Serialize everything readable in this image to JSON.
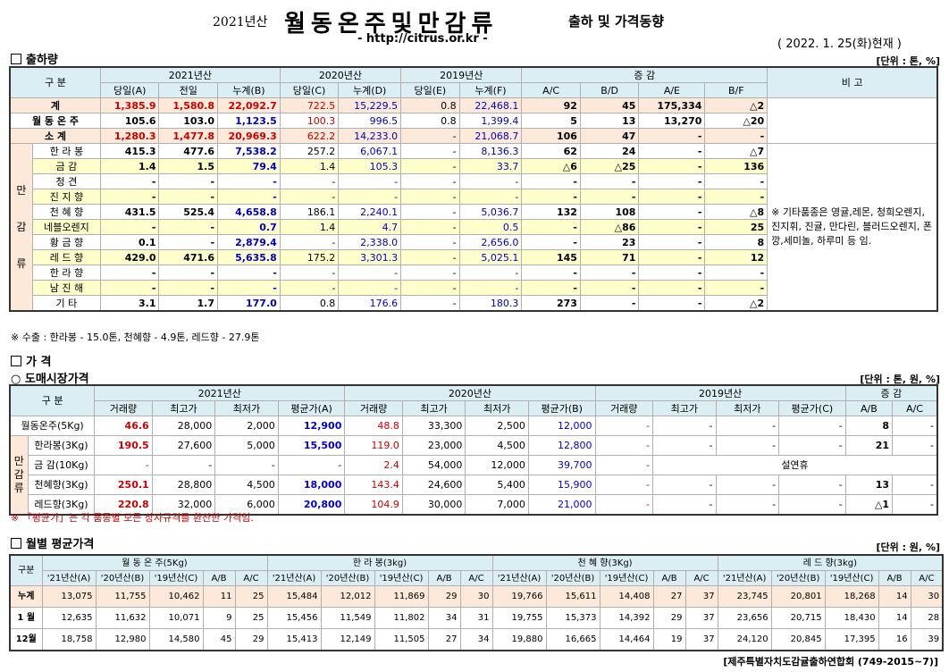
{
  "header": {
    "year": "2021년산",
    "title": "월동온주및만감류",
    "subtitle": "출하 및 가격동향",
    "url": "- http://citrus.or.kr -",
    "date": "( 2022. 1. 25(화)현재 )"
  },
  "s1": {
    "heading": "출하량",
    "unit": "[단위 : 톤, %]",
    "h_gubun": "구 분",
    "h_y21": "2021년산",
    "h_y20": "2020년산",
    "h_y19": "2019년산",
    "h_change": "증 감",
    "h_note": "비 고",
    "cols": [
      "당일(A)",
      "전일",
      "누계(B)",
      "당일(C)",
      "누계(D)",
      "당일(E)",
      "누계(F)",
      "A/C",
      "B/D",
      "A/E",
      "B/F"
    ],
    "side_label": [
      "만",
      "감",
      "류"
    ],
    "rows": [
      {
        "name": "계",
        "v": [
          "1,385.9",
          "1,580.8",
          "22,092.7",
          "722.5",
          "15,229.5",
          "0.8",
          "22,468.1",
          "92",
          "45",
          "175,334",
          "△2"
        ]
      },
      {
        "name": "월 동 온 주",
        "v": [
          "105.6",
          "103.0",
          "1,123.5",
          "100.3",
          "996.5",
          "0.8",
          "1,399.4",
          "5",
          "13",
          "13,270",
          "△20"
        ]
      },
      {
        "name": "소 계",
        "v": [
          "1,280.3",
          "1,477.8",
          "20,969.3",
          "622.2",
          "14,233.0",
          "-",
          "21,068.7",
          "106",
          "47",
          "-",
          "-"
        ]
      },
      {
        "name": "한 라 봉",
        "v": [
          "415.3",
          "477.6",
          "7,538.2",
          "257.2",
          "6,067.1",
          "-",
          "8,136.3",
          "62",
          "24",
          "-",
          "△7"
        ]
      },
      {
        "name": "금 감",
        "v": [
          "1.4",
          "1.5",
          "79.4",
          "1.4",
          "105.3",
          "-",
          "33.7",
          "△6",
          "△25",
          "-",
          "136"
        ]
      },
      {
        "name": "청 견",
        "v": [
          "-",
          "-",
          "-",
          "-",
          "-",
          "-",
          "-",
          "-",
          "-",
          "-",
          "-"
        ]
      },
      {
        "name": "진 지 향",
        "v": [
          "-",
          "-",
          "-",
          "-",
          "-",
          "-",
          "-",
          "-",
          "-",
          "-",
          "-"
        ]
      },
      {
        "name": "천 혜 향",
        "v": [
          "431.5",
          "525.4",
          "4,658.8",
          "186.1",
          "2,240.1",
          "-",
          "5,036.7",
          "132",
          "108",
          "-",
          "△8"
        ]
      },
      {
        "name": "네블오렌지",
        "v": [
          "-",
          "-",
          "0.7",
          "1.4",
          "4.7",
          "-",
          "0.5",
          "-",
          "△86",
          "-",
          "25"
        ]
      },
      {
        "name": "황 금 향",
        "v": [
          "0.1",
          "-",
          "2,879.4",
          "-",
          "2,338.0",
          "-",
          "2,656.0",
          "-",
          "23",
          "-",
          "8"
        ]
      },
      {
        "name": "레 드 향",
        "v": [
          "429.0",
          "471.6",
          "5,635.8",
          "175.2",
          "3,301.3",
          "-",
          "5,025.1",
          "145",
          "71",
          "-",
          "12"
        ]
      },
      {
        "name": "한 라 향",
        "v": [
          "-",
          "-",
          "-",
          "-",
          "-",
          "-",
          "-",
          "-",
          "-",
          "-",
          "-"
        ]
      },
      {
        "name": "남 진 해",
        "v": [
          "-",
          "-",
          "-",
          "-",
          "-",
          "-",
          "-",
          "-",
          "-",
          "-",
          "-"
        ]
      },
      {
        "name": "기 타",
        "v": [
          "3.1",
          "1.7",
          "177.0",
          "0.8",
          "176.6",
          "-",
          "180.3",
          "273",
          "-",
          "-",
          "△2"
        ]
      }
    ],
    "remark": "※ 기타품종은 영귤,레몬, 청희오렌지, 진지휘, 진귤, 만다린, 블러드오렌지, 폰깡,세미놀, 하루미 등 임.",
    "export_note": "※ 수출 : 한라봉 - 15.0톤, 천혜향 - 4.9톤, 레드향 - 27.9톤"
  },
  "s2": {
    "heading": "가 격",
    "subheading": "○ 도매시장가격",
    "unit": "[단위 : 톤, 원, %]",
    "h_gubun": "구 분",
    "h_y21": "2021년산",
    "h_y20": "2020년산",
    "h_y19": "2019년산",
    "h_change": "증 감",
    "cols": [
      "거래량",
      "최고가",
      "최저가",
      "평균가(A)",
      "거래량",
      "최고가",
      "최저가",
      "평균가(B)",
      "거래량",
      "최고가",
      "최저가",
      "평균가(C)",
      "A/B",
      "A/C"
    ],
    "side_label": [
      "만",
      "감",
      "류"
    ],
    "rows": [
      {
        "name": "월동온주(5Kg)",
        "v": [
          "46.6",
          "28,000",
          "2,000",
          "12,900",
          "48.8",
          "33,300",
          "2,500",
          "12,000",
          "-",
          "-",
          "-",
          "-",
          "8",
          "-"
        ]
      },
      {
        "name": "한라봉(3Kg)",
        "v": [
          "190.5",
          "27,600",
          "5,000",
          "15,500",
          "119.0",
          "23,000",
          "4,500",
          "12,800",
          "-",
          "-",
          "-",
          "-",
          "21",
          "-"
        ]
      },
      {
        "name": "금 감(10Kg)",
        "v": [
          "-",
          "-",
          "-",
          "-",
          "2.4",
          "54,000",
          "12,000",
          "39,700",
          "-",
          "설연휴",
          "",
          "",
          "",
          ""
        ]
      },
      {
        "name": "천혜향(3Kg)",
        "v": [
          "250.1",
          "28,800",
          "4,500",
          "18,000",
          "143.4",
          "24,600",
          "5,400",
          "15,900",
          "-",
          "-",
          "-",
          "-",
          "13",
          "-"
        ]
      },
      {
        "name": "레드향(3Kg)",
        "v": [
          "220.8",
          "32,000",
          "6,000",
          "20,800",
          "104.9",
          "30,000",
          "7,000",
          "21,000",
          "-",
          "-",
          "-",
          "-",
          "△1",
          "-"
        ]
      }
    ],
    "note": "※ 「평균가」는 각 품종별 모든 상자규격를 환산한 가격임."
  },
  "s3": {
    "heading": "월별 평균가격",
    "unit": "[단위 : 원, %]",
    "h_gubun": "구분",
    "groups": [
      "월 동 온 주(5Kg)",
      "한 라 봉(3kg)",
      "천 혜 향(3Kg)",
      "레 드 향(3kg)"
    ],
    "cols": [
      "'21년산(A)",
      "'20년산(B)",
      "'19년산(C)",
      "A/B",
      "A/C"
    ],
    "rows": [
      {
        "name": "누계",
        "v": [
          "13,075",
          "11,755",
          "10,462",
          "11",
          "25",
          "15,484",
          "12,012",
          "11,869",
          "29",
          "30",
          "19,766",
          "15,611",
          "14,408",
          "27",
          "37",
          "23,745",
          "20,801",
          "18,268",
          "14",
          "30"
        ]
      },
      {
        "name": "1 월",
        "v": [
          "12,635",
          "11,632",
          "10,071",
          "9",
          "25",
          "15,456",
          "11,549",
          "11,802",
          "34",
          "31",
          "19,755",
          "15,373",
          "14,392",
          "29",
          "37",
          "23,656",
          "20,715",
          "18,430",
          "14",
          "28"
        ]
      },
      {
        "name": "12월",
        "v": [
          "18,758",
          "12,980",
          "14,580",
          "45",
          "29",
          "15,413",
          "12,149",
          "11,505",
          "27",
          "34",
          "19,880",
          "16,665",
          "14,464",
          "19",
          "37",
          "24,120",
          "20,845",
          "17,395",
          "16",
          "39"
        ]
      }
    ]
  },
  "footer": "[제주특별자치도감귤출하연합회 (749-2015~7)]"
}
